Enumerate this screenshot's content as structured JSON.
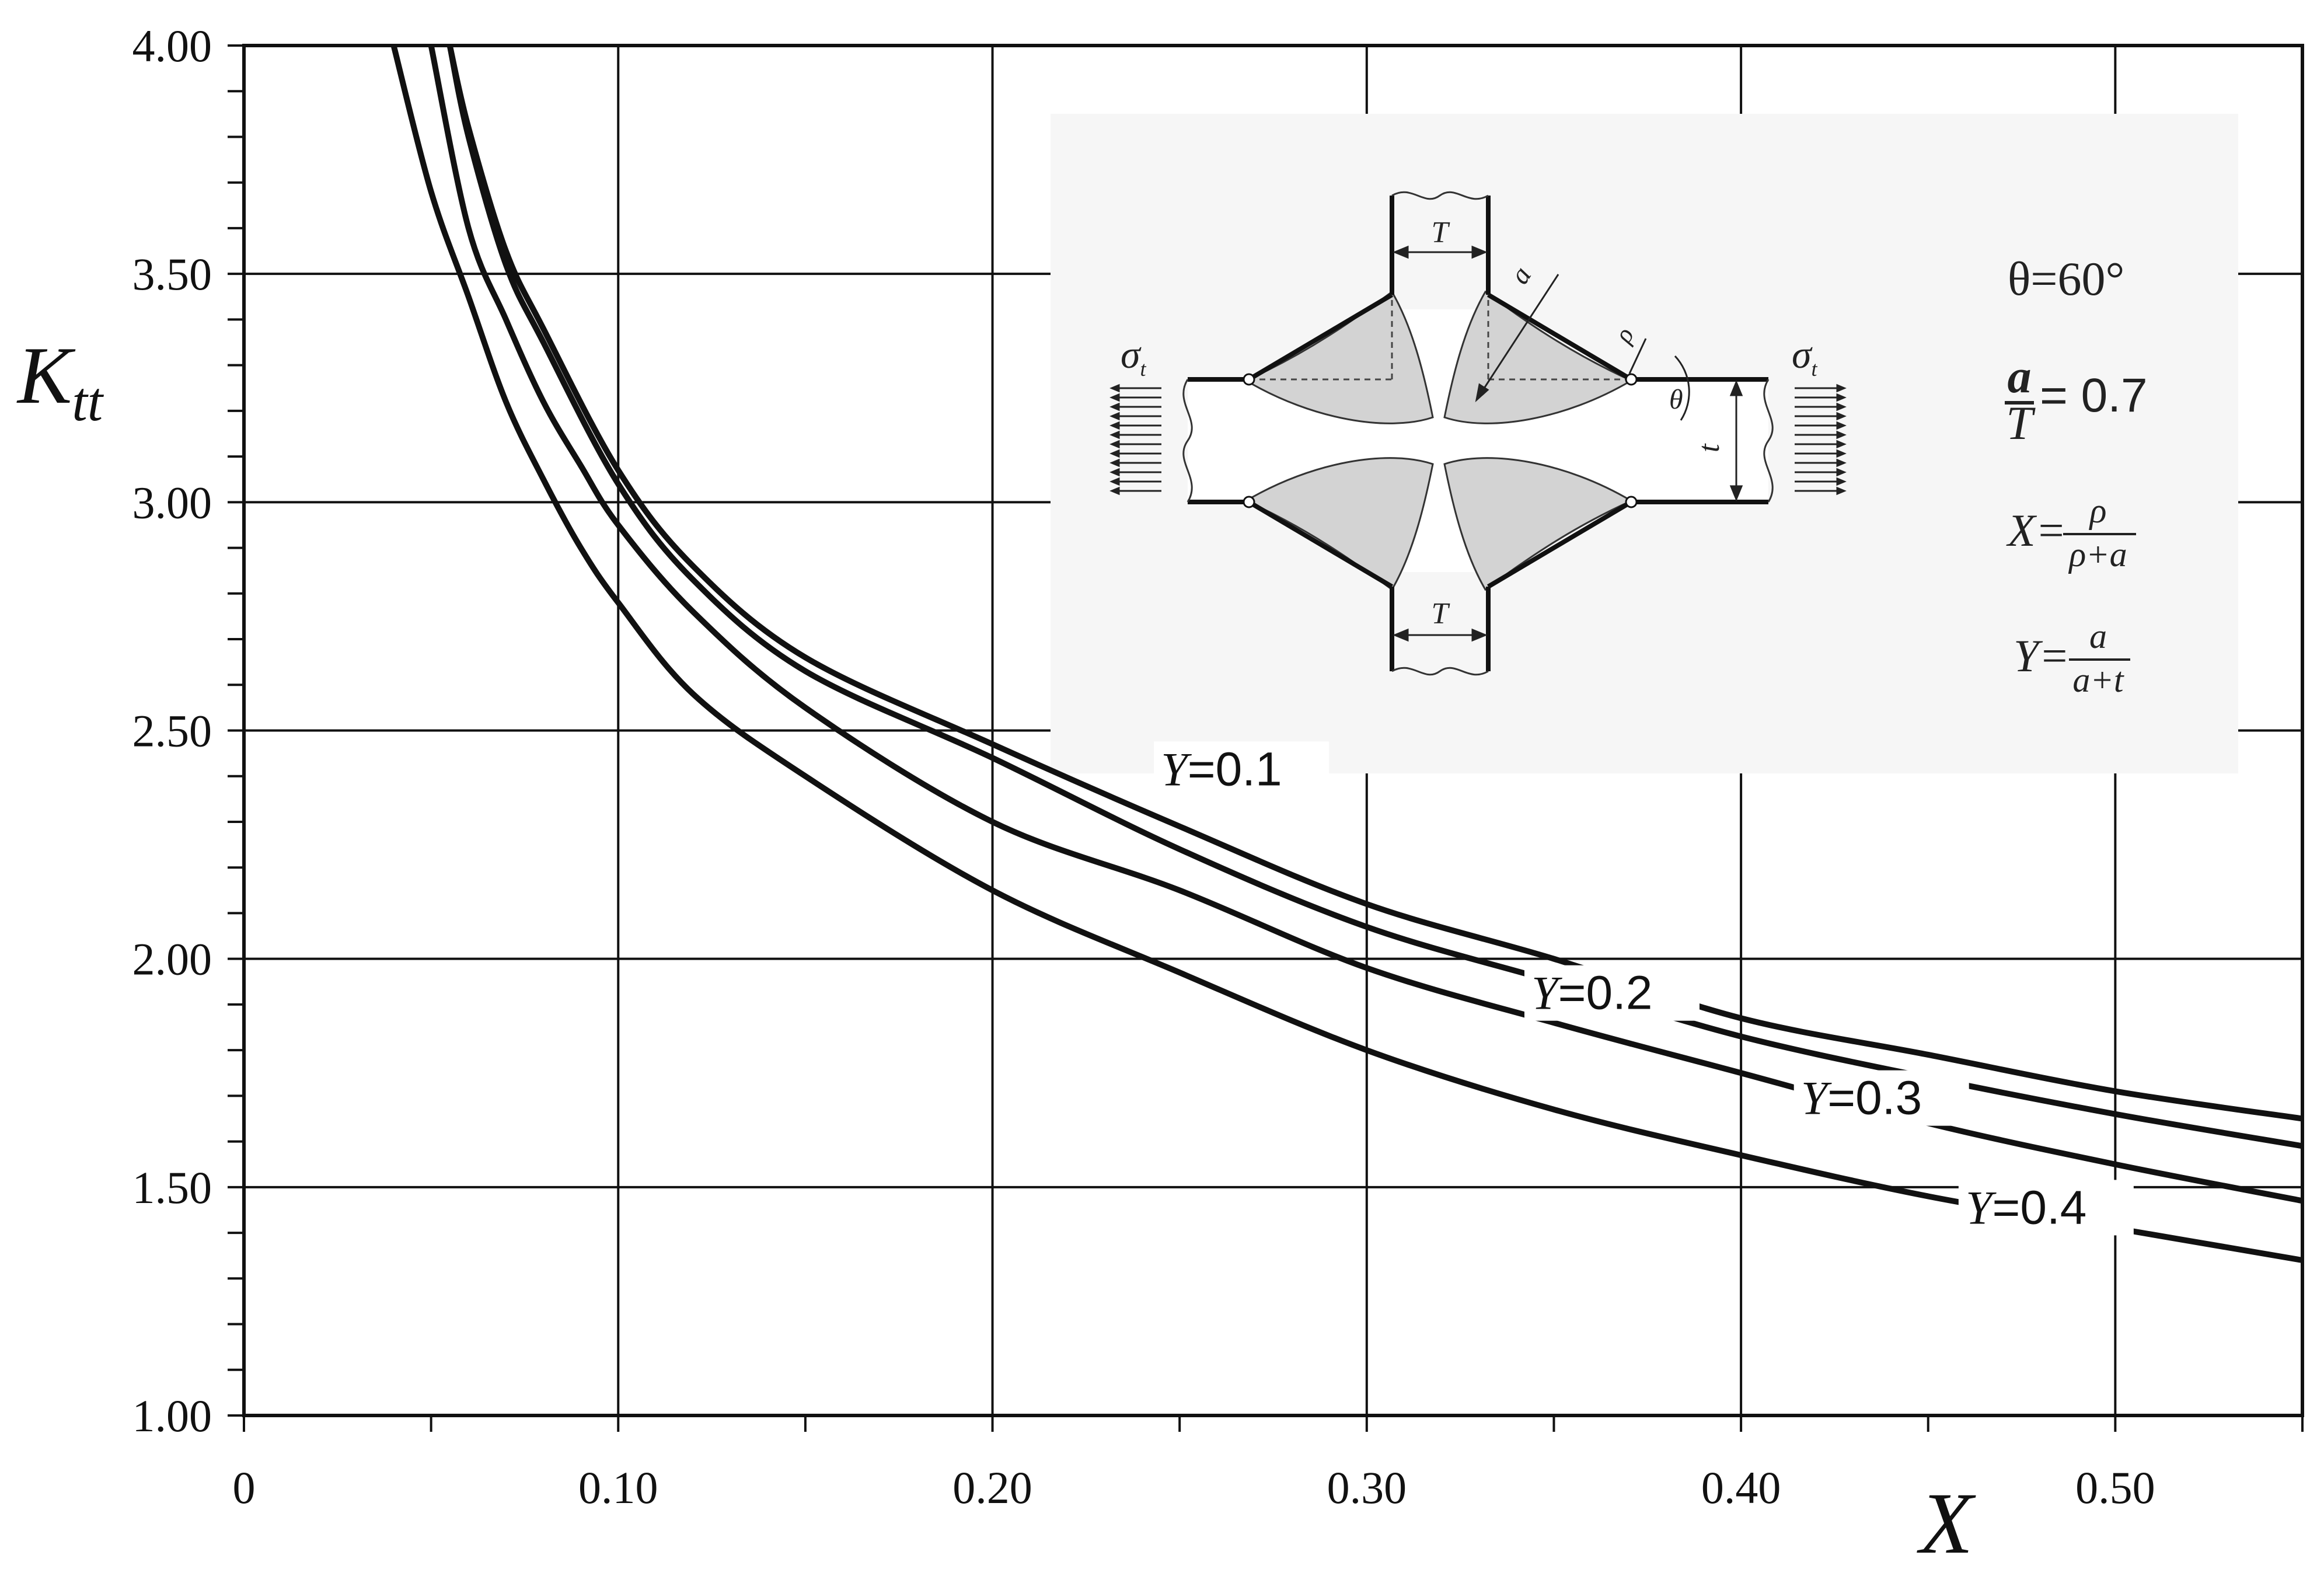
{
  "chart_data": {
    "type": "line",
    "xlabel": "X",
    "ylabel_main": "K",
    "ylabel_sub": "tt",
    "xlim": [
      0,
      0.55
    ],
    "ylim": [
      1.0,
      4.0
    ],
    "x_ticks": [
      "0",
      "0.10",
      "0.20",
      "0.30",
      "0.40",
      "0.50"
    ],
    "x_tick_values": [
      0,
      0.1,
      0.2,
      0.3,
      0.4,
      0.5
    ],
    "y_ticks": [
      "1.00",
      "1.50",
      "2.00",
      "2.50",
      "3.00",
      "3.50",
      "4.00"
    ],
    "y_tick_values": [
      1.0,
      1.5,
      2.0,
      2.5,
      3.0,
      3.5,
      4.0
    ],
    "grid": true,
    "series": [
      {
        "label_italic": "Y",
        "label_rest": "=0.1",
        "x": [
          0.055,
          0.06,
          0.07,
          0.08,
          0.1,
          0.12,
          0.15,
          0.2,
          0.25,
          0.3,
          0.35,
          0.4,
          0.45,
          0.5,
          0.55
        ],
        "y": [
          4.0,
          3.82,
          3.55,
          3.38,
          3.07,
          2.86,
          2.66,
          2.47,
          2.29,
          2.12,
          2.0,
          1.87,
          1.79,
          1.71,
          1.65
        ]
      },
      {
        "label_italic": "Y",
        "label_rest": "=0.2",
        "x": [
          0.055,
          0.06,
          0.07,
          0.08,
          0.1,
          0.12,
          0.15,
          0.2,
          0.25,
          0.3,
          0.35,
          0.4,
          0.45,
          0.5,
          0.55
        ],
        "y": [
          4.0,
          3.8,
          3.52,
          3.35,
          3.04,
          2.83,
          2.63,
          2.44,
          2.24,
          2.07,
          1.95,
          1.83,
          1.74,
          1.66,
          1.59
        ]
      },
      {
        "label_italic": "Y",
        "label_rest": "=0.3",
        "x": [
          0.05,
          0.06,
          0.07,
          0.08,
          0.09,
          0.1,
          0.12,
          0.15,
          0.2,
          0.25,
          0.3,
          0.35,
          0.4,
          0.45,
          0.5,
          0.55
        ],
        "y": [
          4.0,
          3.6,
          3.4,
          3.22,
          3.08,
          2.95,
          2.76,
          2.55,
          2.3,
          2.15,
          1.98,
          1.86,
          1.75,
          1.64,
          1.55,
          1.47
        ]
      },
      {
        "label_italic": "Y",
        "label_rest": "=0.4",
        "x": [
          0.04,
          0.05,
          0.06,
          0.07,
          0.08,
          0.09,
          0.1,
          0.12,
          0.15,
          0.2,
          0.25,
          0.3,
          0.35,
          0.4,
          0.45,
          0.5,
          0.55
        ],
        "y": [
          4.0,
          3.68,
          3.45,
          3.22,
          3.05,
          2.9,
          2.78,
          2.58,
          2.4,
          2.15,
          1.97,
          1.8,
          1.67,
          1.57,
          1.48,
          1.41,
          1.34
        ]
      }
    ]
  },
  "inset": {
    "theta_label": "θ=60°",
    "ratio_num": "a",
    "ratio_den": "T",
    "ratio_value": "= 0.7",
    "x_def_lhs": "X=",
    "x_def_num": "ρ",
    "x_def_den": "ρ+a",
    "y_def_lhs": "Y=",
    "y_def_num": "a",
    "y_def_den": "a+t",
    "dim_T_top": "T",
    "dim_T_bottom": "T",
    "dim_a": "a",
    "dim_rho": "ρ",
    "dim_theta": "θ",
    "dim_t": "t",
    "sigma_left": "σ",
    "sigma_left_sub": "t",
    "sigma_right": "σ",
    "sigma_right_sub": "t"
  }
}
